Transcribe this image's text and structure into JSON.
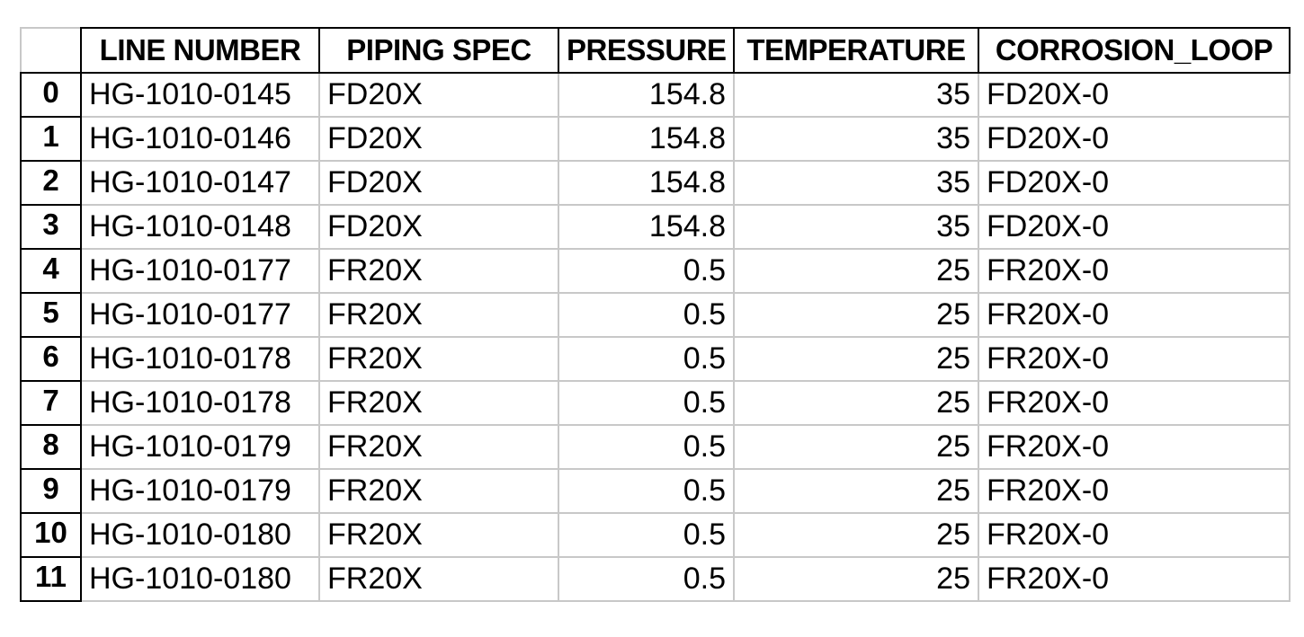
{
  "table": {
    "columns": [
      "LINE NUMBER",
      "PIPING SPEC",
      "PRESSURE",
      "TEMPERATURE",
      "CORROSION_LOOP"
    ],
    "rows": [
      {
        "index": "0",
        "line_number": "HG-1010-0145",
        "piping_spec": "FD20X",
        "pressure": "154.8",
        "temperature": "35",
        "corrosion_loop": "FD20X-0"
      },
      {
        "index": "1",
        "line_number": "HG-1010-0146",
        "piping_spec": "FD20X",
        "pressure": "154.8",
        "temperature": "35",
        "corrosion_loop": "FD20X-0"
      },
      {
        "index": "2",
        "line_number": "HG-1010-0147",
        "piping_spec": "FD20X",
        "pressure": "154.8",
        "temperature": "35",
        "corrosion_loop": "FD20X-0"
      },
      {
        "index": "3",
        "line_number": "HG-1010-0148",
        "piping_spec": "FD20X",
        "pressure": "154.8",
        "temperature": "35",
        "corrosion_loop": "FD20X-0"
      },
      {
        "index": "4",
        "line_number": "HG-1010-0177",
        "piping_spec": "FR20X",
        "pressure": "0.5",
        "temperature": "25",
        "corrosion_loop": "FR20X-0"
      },
      {
        "index": "5",
        "line_number": "HG-1010-0177",
        "piping_spec": "FR20X",
        "pressure": "0.5",
        "temperature": "25",
        "corrosion_loop": "FR20X-0"
      },
      {
        "index": "6",
        "line_number": "HG-1010-0178",
        "piping_spec": "FR20X",
        "pressure": "0.5",
        "temperature": "25",
        "corrosion_loop": "FR20X-0"
      },
      {
        "index": "7",
        "line_number": "HG-1010-0178",
        "piping_spec": "FR20X",
        "pressure": "0.5",
        "temperature": "25",
        "corrosion_loop": "FR20X-0"
      },
      {
        "index": "8",
        "line_number": "HG-1010-0179",
        "piping_spec": "FR20X",
        "pressure": "0.5",
        "temperature": "25",
        "corrosion_loop": "FR20X-0"
      },
      {
        "index": "9",
        "line_number": "HG-1010-0179",
        "piping_spec": "FR20X",
        "pressure": "0.5",
        "temperature": "25",
        "corrosion_loop": "FR20X-0"
      },
      {
        "index": "10",
        "line_number": "HG-1010-0180",
        "piping_spec": "FR20X",
        "pressure": "0.5",
        "temperature": "25",
        "corrosion_loop": "FR20X-0"
      },
      {
        "index": "11",
        "line_number": "HG-1010-0180",
        "piping_spec": "FR20X",
        "pressure": "0.5",
        "temperature": "25",
        "corrosion_loop": "FR20X-0"
      }
    ]
  }
}
